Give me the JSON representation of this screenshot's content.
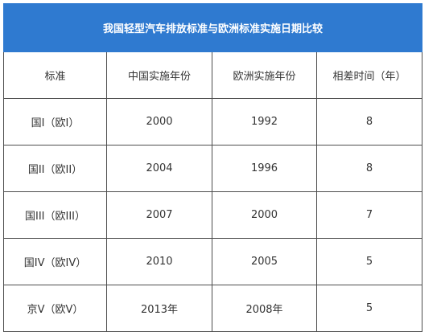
{
  "table": {
    "title": "我国轻型汽车排放标准与欧洲标准实施日期比较",
    "headers": [
      "标准",
      "中国实施年份",
      "欧洲实施年份",
      "相差时间（年）"
    ],
    "rows": [
      [
        "国I（欧I）",
        "2000",
        "1992",
        "8"
      ],
      [
        "国II（欧II）",
        "2004",
        "1996",
        "8"
      ],
      [
        "国III（欧III）",
        "2007",
        "2000",
        "7"
      ],
      [
        "国IV（欧IV）",
        "2010",
        "2005",
        "5"
      ],
      [
        "京V（欧V）",
        "2013年",
        "2008年",
        "5"
      ]
    ]
  },
  "colors": {
    "title_bg": "#2f7ad0",
    "border": "#4d4d4d",
    "text": "#333333"
  }
}
